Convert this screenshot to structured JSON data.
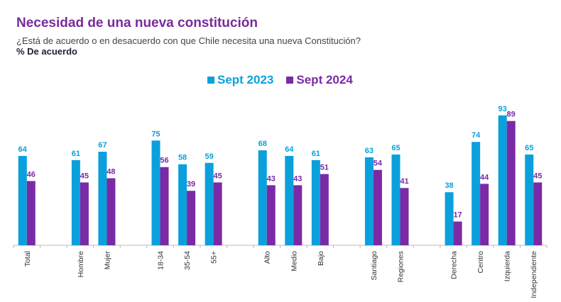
{
  "chart_data": {
    "type": "bar",
    "title": "Necesidad de una nueva constitución",
    "subtitle": "¿Está de acuerdo o en desacuerdo con que Chile necesita una nueva Constitución?",
    "ylabel": "% De acuerdo",
    "xlabel": "",
    "ylim": [
      0,
      100
    ],
    "grid": false,
    "legend_position": "top-center",
    "categories": [
      "Total",
      "",
      "Hombre",
      "Mujer",
      "",
      "18-34",
      "35-54",
      "55+",
      "",
      "Alto",
      "Medio",
      "Bajo",
      "",
      "Santiago",
      "Regiones",
      "",
      "Derecha",
      "Centro",
      "Izquierda",
      "Independiente"
    ],
    "series": [
      {
        "name": "Sept 2023",
        "color": "#0aa0dc",
        "values": [
          64,
          null,
          61,
          67,
          null,
          75,
          58,
          59,
          null,
          68,
          64,
          61,
          null,
          63,
          65,
          null,
          38,
          74,
          93,
          65
        ]
      },
      {
        "name": "Sept 2024",
        "color": "#7b2aa6",
        "values": [
          46,
          null,
          45,
          48,
          null,
          56,
          39,
          45,
          null,
          43,
          43,
          51,
          null,
          54,
          41,
          null,
          17,
          44,
          89,
          45
        ]
      }
    ]
  }
}
